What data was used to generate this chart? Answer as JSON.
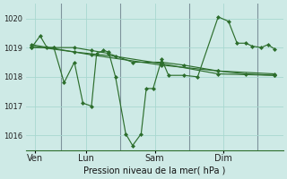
{
  "background_color": "#ceeae6",
  "grid_color": "#a8d8d0",
  "line_color": "#2d6e2d",
  "marker_color": "#2d6e2d",
  "xlabel": "Pression niveau de la mer( hPa )",
  "ylim": [
    1015.5,
    1020.5
  ],
  "yticks": [
    1016,
    1017,
    1018,
    1019,
    1020
  ],
  "day_labels": [
    "Ven",
    "Lun",
    "Sam",
    "Dim"
  ],
  "day_positions": [
    0.5,
    3.5,
    7.5,
    11.5
  ],
  "vline_positions": [
    2.0,
    5.5,
    9.5,
    13.5
  ],
  "xlim": [
    0,
    15
  ],
  "series": [
    {
      "x": [
        0.3,
        0.8,
        1.2,
        1.6,
        2.2,
        2.8,
        3.3,
        3.8,
        4.1,
        4.5,
        4.8,
        5.2,
        5.8,
        6.2,
        6.7,
        7.0,
        7.4,
        7.9,
        8.3,
        9.2,
        10.0,
        11.2,
        11.8,
        12.3,
        12.8,
        13.2,
        13.7,
        14.1,
        14.5
      ],
      "y": [
        1019.0,
        1019.4,
        1019.0,
        1019.0,
        1017.8,
        1018.5,
        1017.1,
        1017.0,
        1018.8,
        1018.9,
        1018.85,
        1018.0,
        1016.05,
        1015.65,
        1016.05,
        1017.6,
        1017.6,
        1018.6,
        1018.05,
        1018.05,
        1018.0,
        1020.05,
        1019.9,
        1019.15,
        1019.15,
        1019.05,
        1019.0,
        1019.1,
        1018.95
      ]
    },
    {
      "x": [
        0.3,
        1.6,
        2.8,
        3.8,
        4.8,
        6.2,
        7.9,
        9.2,
        11.2,
        14.5
      ],
      "y": [
        1019.0,
        1019.0,
        1019.0,
        1018.9,
        1018.8,
        1018.5,
        1018.5,
        1018.4,
        1018.2,
        1018.1
      ]
    },
    {
      "x": [
        0.3,
        2.8,
        5.2,
        7.9,
        11.2,
        14.5
      ],
      "y": [
        1019.05,
        1018.85,
        1018.7,
        1018.45,
        1018.1,
        1018.05
      ]
    },
    {
      "x": [
        0.3,
        3.8,
        7.9,
        11.2,
        12.8,
        14.5
      ],
      "y": [
        1019.1,
        1018.75,
        1018.4,
        1018.2,
        1018.1,
        1018.05
      ]
    }
  ]
}
